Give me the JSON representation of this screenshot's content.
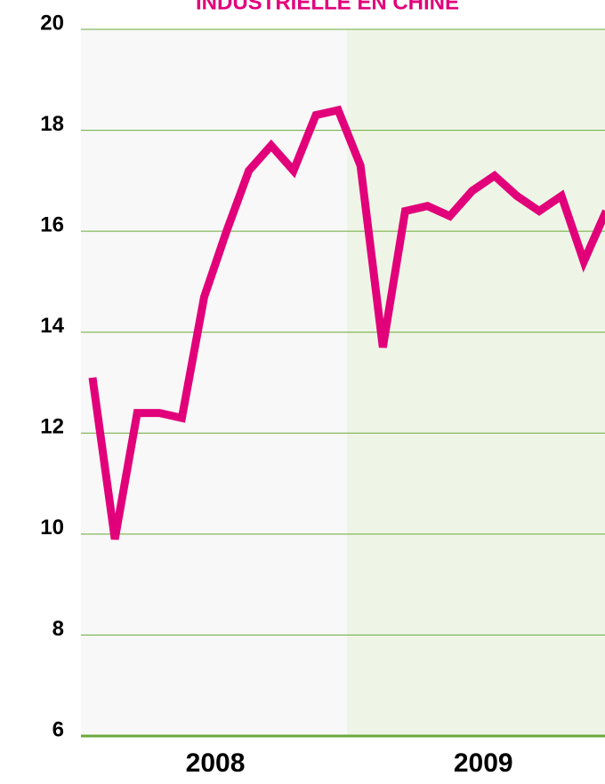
{
  "chart_data": {
    "type": "line",
    "title": "INDUSTRIELLE EN CHINE",
    "categories": [
      null,
      null,
      null,
      null,
      null,
      null,
      null,
      null,
      null,
      null,
      null,
      null,
      null,
      null,
      null,
      null,
      null,
      null,
      null,
      null,
      null,
      null,
      null,
      null
    ],
    "groups": [
      "2008",
      "2009"
    ],
    "series": [
      {
        "name": null,
        "color": "#e2007a",
        "values": [
          13.1,
          9.9,
          12.4,
          12.4,
          12.3,
          14.7,
          16.0,
          17.2,
          17.7,
          17.2,
          18.3,
          18.4,
          17.3,
          13.7,
          16.4,
          16.5,
          16.3,
          16.8,
          17.1,
          16.7,
          16.4,
          16.7,
          15.4,
          16.4
        ]
      }
    ],
    "ylim": [
      6,
      20
    ],
    "yticks": [
      6,
      8,
      10,
      12,
      14,
      16,
      18,
      20
    ],
    "grid": true
  }
}
